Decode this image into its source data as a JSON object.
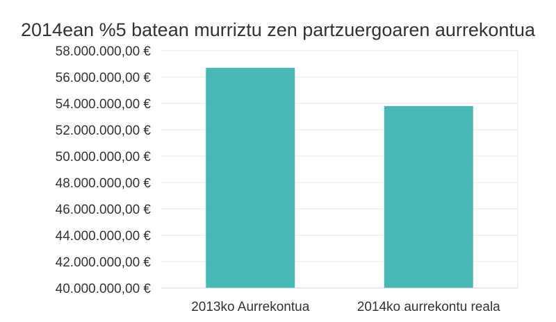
{
  "chart_data": {
    "type": "bar",
    "title": "2014ean %5 batean murriztu zen partzuergoaren aurrekontua",
    "xlabel": "",
    "ylabel": "",
    "categories": [
      "2013ko Aurrekontua",
      "2014ko aurrekontu reala"
    ],
    "values": [
      56700000,
      53800000
    ],
    "ylim": [
      40000000,
      58000000
    ],
    "yticks": [
      40000000,
      42000000,
      44000000,
      46000000,
      48000000,
      50000000,
      52000000,
      54000000,
      56000000,
      58000000
    ],
    "ytick_labels": [
      "40.000.000,00 €",
      "42.000.000,00 €",
      "44.000.000,00 €",
      "46.000.000,00 €",
      "48.000.000,00 €",
      "50.000.000,00 €",
      "52.000.000,00 €",
      "54.000.000,00 €",
      "56.000.000,00 €",
      "58.000.000,00 €"
    ],
    "bar_color": "#48b8b6",
    "grid": true,
    "legend": "none"
  }
}
